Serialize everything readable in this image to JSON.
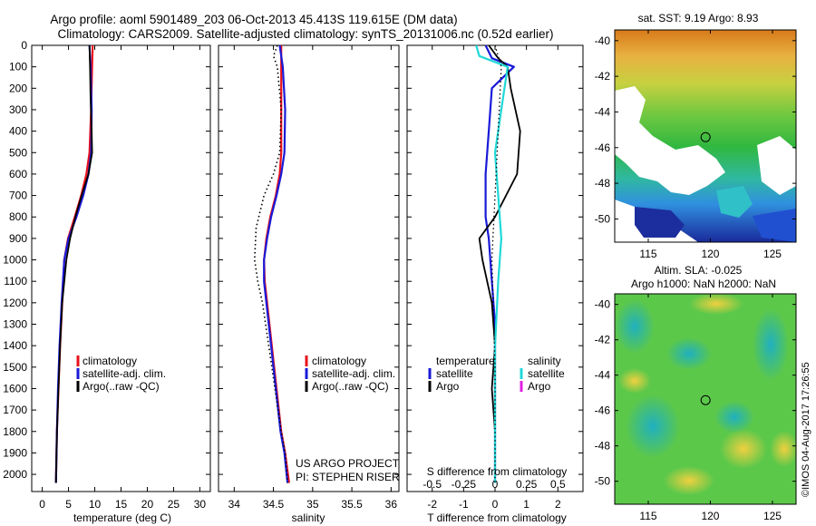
{
  "header": {
    "title_line1": "Argo profile: aoml 5901489_203 06-Oct-2013 45.413S 119.615E (DM data)",
    "title_line2": "Climatology: CARS2009. Satellite-adjusted climatology: synTS_20131006.nc (0.52d earlier)"
  },
  "colors": {
    "climatology": "#e8101a",
    "satellite": "#1a1ad8",
    "argo": "#000000",
    "sal_satellite": "#20d8d8",
    "sal_argo": "#e020e0"
  },
  "chart_data": [
    {
      "id": "temperature",
      "type": "line",
      "xlabel": "temperature (deg C)",
      "xlim": [
        -2,
        32
      ],
      "xticks": [
        "0",
        "5",
        "10",
        "15",
        "20",
        "25",
        "30"
      ],
      "xtick_values": [
        0,
        5,
        10,
        15,
        20,
        25,
        30
      ],
      "ylim": [
        0,
        2080
      ],
      "yticks": [
        "0",
        "100",
        "200",
        "300",
        "400",
        "500",
        "600",
        "700",
        "800",
        "900",
        "1000",
        "1100",
        "1200",
        "1300",
        "1400",
        "1500",
        "1600",
        "1700",
        "1800",
        "1900",
        "2000"
      ],
      "ytick_values": [
        0,
        100,
        200,
        300,
        400,
        500,
        600,
        700,
        800,
        900,
        1000,
        1100,
        1200,
        1300,
        1400,
        1500,
        1600,
        1700,
        1800,
        1900,
        2000
      ],
      "legend": [
        "climatology",
        "satellite-adj. clim.",
        "Argo(..raw -QC)"
      ],
      "series": [
        {
          "name": "climatology",
          "style": "climatology",
          "x": [
            9.6,
            9.5,
            9.3,
            9.0,
            8.4,
            7.4,
            6.2,
            4.9,
            4.2,
            3.8,
            3.4,
            3.1,
            2.8,
            2.6
          ],
          "y": [
            0,
            100,
            300,
            500,
            600,
            700,
            800,
            900,
            1000,
            1200,
            1400,
            1600,
            1800,
            2040
          ]
        },
        {
          "name": "satellite-adj. clim.",
          "style": "satellite",
          "x": [
            9.0,
            9.2,
            9.4,
            9.3,
            8.8,
            7.8,
            6.5,
            5.0,
            4.2,
            3.7,
            3.3,
            3.0,
            2.8,
            2.6
          ],
          "y": [
            0,
            100,
            300,
            500,
            600,
            700,
            800,
            900,
            1000,
            1200,
            1400,
            1600,
            1800,
            2040
          ]
        },
        {
          "name": "Argo(..raw -QC)",
          "style": "argo",
          "x": [
            9.0,
            9.1,
            9.2,
            9.4,
            9.5,
            8.8,
            7.5,
            6.3,
            5.3,
            4.6,
            4.2,
            3.8,
            3.4,
            3.1,
            2.8,
            2.6
          ],
          "y": [
            0,
            100,
            250,
            400,
            500,
            600,
            700,
            800,
            900,
            1000,
            1100,
            1200,
            1400,
            1600,
            1800,
            2040
          ]
        }
      ]
    },
    {
      "id": "salinity",
      "type": "line",
      "xlabel": "salinity",
      "xlim": [
        33.8,
        36.1
      ],
      "xticks": [
        "34",
        "34.5",
        "35",
        "35.5",
        "36"
      ],
      "xtick_values": [
        34,
        34.5,
        35,
        35.5,
        36
      ],
      "ylim": [
        0,
        2080
      ],
      "legend": [
        "climatology",
        "satellite-adj. clim.",
        "Argo(..raw -QC)"
      ],
      "annotation_line1": "US ARGO PROJECT",
      "annotation_line2": "PI: STEPHEN RISER",
      "series": [
        {
          "name": "climatology",
          "style": "climatology",
          "x": [
            34.6,
            34.6,
            34.6,
            34.6,
            34.58,
            34.53,
            34.46,
            34.41,
            34.38,
            34.39,
            34.42,
            34.48,
            34.54,
            34.6,
            34.65,
            34.7
          ],
          "y": [
            0,
            100,
            300,
            500,
            600,
            700,
            800,
            900,
            1000,
            1100,
            1200,
            1400,
            1600,
            1800,
            1900,
            2040
          ]
        },
        {
          "name": "satellite-adj. clim.",
          "style": "satellite",
          "x": [
            34.58,
            34.62,
            34.65,
            34.64,
            34.6,
            34.54,
            34.47,
            34.42,
            34.38,
            34.38,
            34.41,
            34.47,
            34.53,
            34.59,
            34.64,
            34.68
          ],
          "y": [
            0,
            100,
            300,
            500,
            600,
            700,
            800,
            900,
            1000,
            1100,
            1200,
            1400,
            1600,
            1800,
            1900,
            2040
          ]
        },
        {
          "name": "Argo(..raw -QC)",
          "style": "argo_dotted",
          "x": [
            34.55,
            34.5,
            34.55,
            34.6,
            34.58,
            34.5,
            34.38,
            34.28,
            34.26,
            34.3,
            34.36,
            34.44,
            34.52,
            34.6,
            34.65,
            34.68
          ],
          "y": [
            0,
            50,
            100,
            300,
            500,
            600,
            700,
            850,
            1000,
            1100,
            1200,
            1400,
            1600,
            1800,
            1900,
            2040
          ]
        }
      ]
    },
    {
      "id": "difference",
      "type": "line",
      "xlabel": "T difference from climatology",
      "top_label": "S difference from climatology",
      "xlim": [
        -2.8,
        2.8
      ],
      "xticks": [
        "-2",
        "-1",
        "0",
        "1",
        "2"
      ],
      "xtick_values": [
        -2,
        -1,
        0,
        1,
        2
      ],
      "sticks": [
        "-0.5",
        "-0.25",
        "0",
        "0.25",
        "0.5"
      ],
      "stick_values": [
        -2,
        -1,
        0,
        1,
        2
      ],
      "ylim": [
        0,
        2080
      ],
      "legend_temp_title": "temperature",
      "legend_sal_title": "salinity",
      "legend_temp": [
        "satellite",
        "Argo"
      ],
      "legend_sal": [
        "satellite",
        "Argo"
      ],
      "series": [
        {
          "name": "T satellite",
          "style": "satellite",
          "x": [
            -0.3,
            -0.1,
            0.6,
            -0.1,
            -0.2,
            -0.3,
            -0.3,
            -0.2,
            -0.1,
            0.0,
            0.0,
            0.0,
            0.0,
            0.0
          ],
          "y": [
            0,
            60,
            100,
            200,
            400,
            600,
            800,
            900,
            1100,
            1300,
            1500,
            1700,
            1900,
            2040
          ]
        },
        {
          "name": "T Argo",
          "style": "argo",
          "x": [
            -0.2,
            0.1,
            0.4,
            0.5,
            0.8,
            0.7,
            0.0,
            -0.5,
            -0.4,
            -0.1,
            0.0,
            -0.1,
            0.0,
            0.0
          ],
          "y": [
            0,
            60,
            100,
            200,
            400,
            600,
            800,
            900,
            1000,
            1200,
            1400,
            1600,
            1800,
            2040
          ]
        },
        {
          "name": "S satellite",
          "style": "sal_satellite",
          "x": [
            -0.6,
            -0.5,
            0.4,
            0.2,
            0.0,
            0.1,
            0.2,
            0.1,
            0.0,
            0.0,
            0.0
          ],
          "y": [
            0,
            50,
            100,
            300,
            500,
            700,
            900,
            1100,
            1400,
            1700,
            2040
          ]
        },
        {
          "name": "S Argo",
          "style": "dotted",
          "x": [
            0.0,
            0.2,
            0.1,
            0.0,
            -0.1,
            0.0,
            0.0
          ],
          "y": [
            0,
            100,
            400,
            700,
            1000,
            1500,
            2040
          ]
        }
      ]
    },
    {
      "id": "sst_map",
      "type": "heatmap",
      "title": "sat. SST: 9.19 Argo: 8.93",
      "xticks": [
        "115",
        "120",
        "125"
      ],
      "xtick_values": [
        115,
        120,
        125
      ],
      "yticks": [
        "-40",
        "-42",
        "-44",
        "-46",
        "-48",
        "-50"
      ],
      "ytick_values": [
        -40,
        -42,
        -44,
        -46,
        -48,
        -50
      ],
      "xlim": [
        112.3,
        126.9
      ],
      "ylim": [
        -51.3,
        -39.4
      ],
      "marker": [
        119.615,
        -45.413
      ]
    },
    {
      "id": "sla_map",
      "type": "heatmap",
      "title_line1": "Altim. SLA: -0.025",
      "title_line2": "Argo h1000: NaN h2000: NaN",
      "xticks": [
        "115",
        "120",
        "125"
      ],
      "xtick_values": [
        115,
        120,
        125
      ],
      "yticks": [
        "-40",
        "-42",
        "-44",
        "-46",
        "-48",
        "-50"
      ],
      "ytick_values": [
        -40,
        -42,
        -44,
        -46,
        -48,
        -50
      ],
      "xlim": [
        112.3,
        126.9
      ],
      "ylim": [
        -51.3,
        -39.4
      ],
      "marker": [
        119.615,
        -45.413
      ],
      "side_label": "©IMOS 04-Aug-2017 17:26:55"
    }
  ]
}
